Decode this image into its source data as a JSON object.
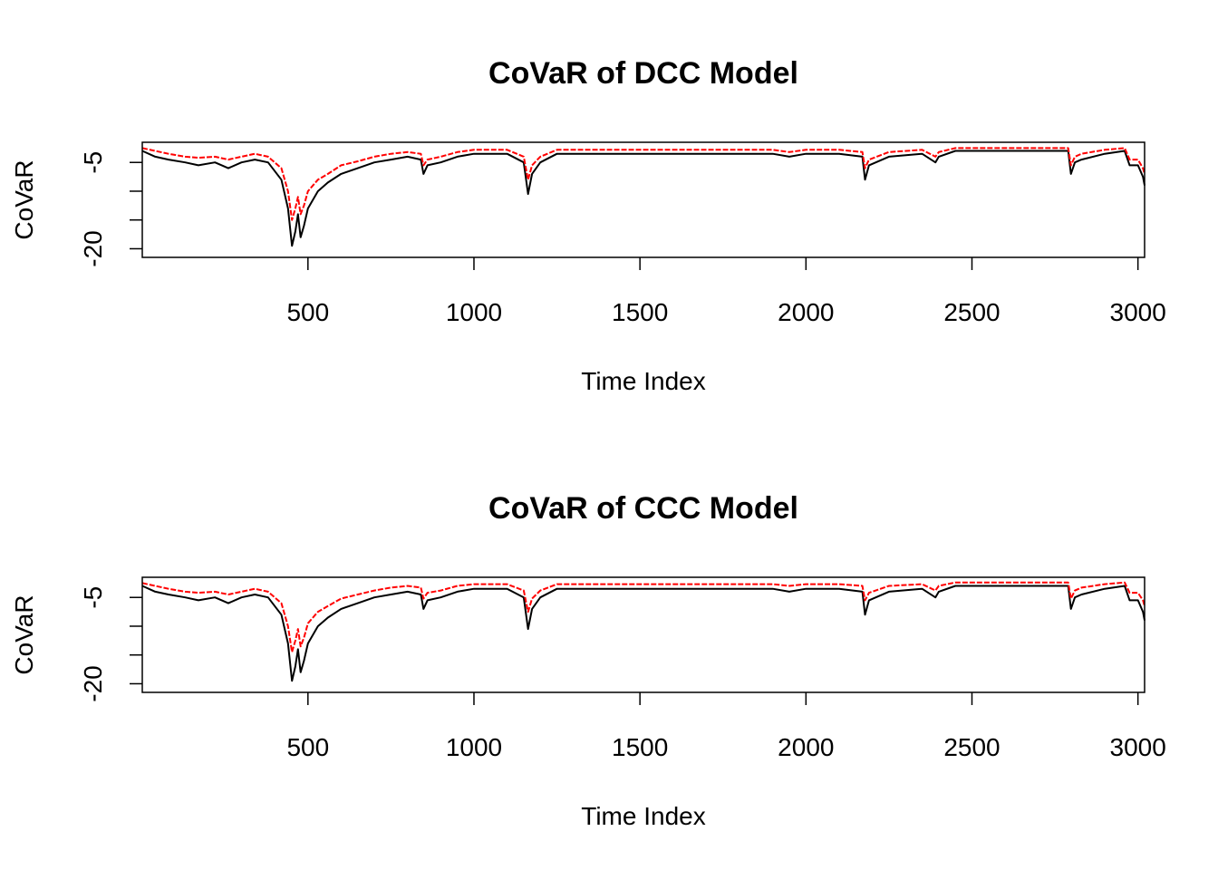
{
  "colors": {
    "lower": "#000000",
    "upper": "#ff0000",
    "frame": "#000000"
  },
  "chart_data": [
    {
      "type": "line",
      "title": "CoVaR of DCC Model",
      "xlabel": "Time Index",
      "ylabel": "CoVaR",
      "xlim": [
        1,
        3020
      ],
      "ylim": [
        -21.5,
        -1.5
      ],
      "xticks": [
        500,
        1000,
        1500,
        2000,
        2500,
        3000
      ],
      "xtick_labels": [
        "500",
        "1000",
        "1500",
        "2000",
        "2500",
        "3000"
      ],
      "yticks": [
        -5,
        -10,
        -15,
        -20
      ],
      "ytick_labels": [
        "-5",
        "",
        "",
        "-20"
      ],
      "series": [
        {
          "color": "#000000",
          "x": [
            1,
            40,
            80,
            130,
            170,
            220,
            260,
            300,
            340,
            380,
            420,
            440,
            452,
            462,
            470,
            478,
            488,
            500,
            530,
            560,
            600,
            650,
            700,
            750,
            800,
            840,
            848,
            860,
            900,
            950,
            1000,
            1050,
            1100,
            1150,
            1163,
            1175,
            1200,
            1250,
            1300,
            1400,
            1500,
            1600,
            1700,
            1800,
            1900,
            1950,
            2000,
            2100,
            2170,
            2178,
            2190,
            2250,
            2350,
            2390,
            2400,
            2450,
            2500,
            2600,
            2700,
            2790,
            2798,
            2810,
            2830,
            2900,
            2960,
            2975,
            3000,
            3015,
            3020
          ],
          "y": [
            -3,
            -4,
            -4.5,
            -5,
            -5.5,
            -5,
            -6,
            -5,
            -4.5,
            -5,
            -8,
            -13,
            -19.5,
            -17,
            -14,
            -18,
            -16,
            -13,
            -10,
            -8.5,
            -7,
            -6,
            -5,
            -4.5,
            -4,
            -4.5,
            -7,
            -5.5,
            -5,
            -4,
            -3.5,
            -3.5,
            -3.5,
            -5,
            -10.5,
            -7,
            -5,
            -3.5,
            -3.5,
            -3.5,
            -3.5,
            -3.5,
            -3.5,
            -3.5,
            -3.5,
            -4,
            -3.5,
            -3.5,
            -4,
            -8,
            -5.5,
            -4,
            -3.5,
            -5,
            -4,
            -3,
            -3,
            -3,
            -3,
            -3,
            -7,
            -5,
            -4.5,
            -3.5,
            -3,
            -5.5,
            -5.5,
            -7.5,
            -9
          ]
        },
        {
          "color": "#ff0000",
          "x": [
            1,
            40,
            80,
            130,
            170,
            220,
            260,
            300,
            340,
            380,
            420,
            440,
            452,
            462,
            470,
            478,
            488,
            500,
            530,
            560,
            600,
            650,
            700,
            750,
            800,
            840,
            848,
            860,
            900,
            950,
            1000,
            1050,
            1100,
            1150,
            1163,
            1175,
            1200,
            1250,
            1300,
            1400,
            1500,
            1600,
            1700,
            1800,
            1900,
            1950,
            2000,
            2100,
            2170,
            2178,
            2190,
            2250,
            2350,
            2390,
            2400,
            2450,
            2500,
            2600,
            2700,
            2790,
            2798,
            2810,
            2830,
            2900,
            2960,
            2975,
            3000,
            3015,
            3020
          ],
          "y": [
            -2.5,
            -3,
            -3.5,
            -4,
            -4.2,
            -4,
            -4.5,
            -4,
            -3.5,
            -4,
            -6,
            -10,
            -15,
            -13,
            -11,
            -14,
            -12.5,
            -10,
            -8,
            -7,
            -5.5,
            -4.8,
            -4,
            -3.5,
            -3.2,
            -3.5,
            -5.5,
            -4.5,
            -4,
            -3.2,
            -2.8,
            -2.8,
            -2.8,
            -4,
            -8,
            -5.5,
            -4,
            -2.8,
            -2.8,
            -2.8,
            -2.8,
            -2.8,
            -2.8,
            -2.8,
            -2.8,
            -3.2,
            -2.8,
            -2.8,
            -3.2,
            -6,
            -4.5,
            -3.2,
            -2.8,
            -4,
            -3.2,
            -2.5,
            -2.5,
            -2.5,
            -2.5,
            -2.5,
            -5.5,
            -4,
            -3.5,
            -2.8,
            -2.5,
            -4.5,
            -4.5,
            -6,
            -7
          ]
        }
      ]
    },
    {
      "type": "line",
      "title": "CoVaR of CCC Model",
      "xlabel": "Time Index",
      "ylabel": "CoVaR",
      "xlim": [
        1,
        3020
      ],
      "ylim": [
        -21.5,
        -1.5
      ],
      "xticks": [
        500,
        1000,
        1500,
        2000,
        2500,
        3000
      ],
      "xtick_labels": [
        "500",
        "1000",
        "1500",
        "2000",
        "2500",
        "3000"
      ],
      "yticks": [
        -5,
        -10,
        -15,
        -20
      ],
      "ytick_labels": [
        "-5",
        "",
        "",
        "-20"
      ],
      "series": [
        {
          "color": "#000000",
          "x": [
            1,
            40,
            80,
            130,
            170,
            220,
            260,
            300,
            340,
            380,
            420,
            440,
            452,
            462,
            470,
            478,
            488,
            500,
            530,
            560,
            600,
            650,
            700,
            750,
            800,
            840,
            848,
            860,
            900,
            950,
            1000,
            1050,
            1100,
            1150,
            1163,
            1175,
            1200,
            1250,
            1300,
            1400,
            1500,
            1600,
            1700,
            1800,
            1900,
            1950,
            2000,
            2100,
            2170,
            2178,
            2190,
            2250,
            2350,
            2390,
            2400,
            2450,
            2500,
            2600,
            2700,
            2790,
            2798,
            2810,
            2830,
            2900,
            2960,
            2975,
            3000,
            3015,
            3020
          ],
          "y": [
            -3,
            -4,
            -4.5,
            -5,
            -5.5,
            -5,
            -6,
            -5,
            -4.5,
            -5,
            -8,
            -13,
            -19.5,
            -17,
            -14,
            -18,
            -16,
            -13,
            -10,
            -8.5,
            -7,
            -6,
            -5,
            -4.5,
            -4,
            -4.5,
            -7,
            -5.5,
            -5,
            -4,
            -3.5,
            -3.5,
            -3.5,
            -5,
            -10.5,
            -7,
            -5,
            -3.5,
            -3.5,
            -3.5,
            -3.5,
            -3.5,
            -3.5,
            -3.5,
            -3.5,
            -4,
            -3.5,
            -3.5,
            -4,
            -8,
            -5.5,
            -4,
            -3.5,
            -5,
            -4,
            -3,
            -3,
            -3,
            -3,
            -3,
            -7,
            -5,
            -4.5,
            -3.5,
            -3,
            -5.5,
            -5.5,
            -7.5,
            -9
          ]
        },
        {
          "color": "#ff0000",
          "x": [
            1,
            40,
            80,
            130,
            170,
            220,
            260,
            300,
            340,
            380,
            420,
            440,
            452,
            462,
            470,
            478,
            488,
            500,
            530,
            560,
            600,
            650,
            700,
            750,
            800,
            840,
            848,
            860,
            900,
            950,
            1000,
            1050,
            1100,
            1150,
            1163,
            1175,
            1200,
            1250,
            1300,
            1400,
            1500,
            1600,
            1700,
            1800,
            1900,
            1950,
            2000,
            2100,
            2170,
            2178,
            2190,
            2250,
            2350,
            2390,
            2400,
            2450,
            2500,
            2600,
            2700,
            2790,
            2798,
            2810,
            2830,
            2900,
            2960,
            2975,
            3000,
            3015,
            3020
          ],
          "y": [
            -2.5,
            -3,
            -3.5,
            -4,
            -4.2,
            -4,
            -4.5,
            -4,
            -3.5,
            -4,
            -6,
            -10,
            -14.5,
            -12.5,
            -10.5,
            -13.5,
            -12,
            -9.5,
            -7.5,
            -6.5,
            -5.2,
            -4.5,
            -3.8,
            -3.3,
            -3,
            -3.3,
            -5.2,
            -4.2,
            -3.8,
            -3,
            -2.7,
            -2.7,
            -2.7,
            -3.8,
            -7.5,
            -5.2,
            -3.8,
            -2.7,
            -2.7,
            -2.7,
            -2.7,
            -2.7,
            -2.7,
            -2.7,
            -2.7,
            -3,
            -2.7,
            -2.7,
            -3,
            -5.5,
            -4.2,
            -3,
            -2.7,
            -3.8,
            -3,
            -2.4,
            -2.4,
            -2.4,
            -2.4,
            -2.4,
            -5.2,
            -3.8,
            -3.3,
            -2.7,
            -2.4,
            -4.2,
            -4.2,
            -5.5,
            -6.5
          ]
        }
      ]
    }
  ]
}
